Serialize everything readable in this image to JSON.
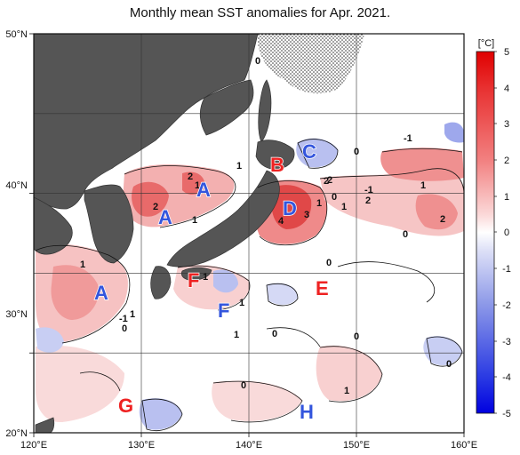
{
  "title": "Monthly mean SST anomalies for Apr. 2021.",
  "longitude_ticks": [
    "120°E",
    "130°E",
    "140°E",
    "150°E",
    "160°E"
  ],
  "latitude_ticks": [
    "50°N",
    "40°N",
    "30°N",
    "20°N"
  ],
  "colorbar": {
    "unit": "[°C]",
    "ticks": [
      "5",
      "4",
      "3",
      "2",
      "1",
      "0",
      "-1",
      "-2",
      "-3",
      "-4",
      "-5"
    ],
    "min": -5,
    "max": 5,
    "colors": {
      "cold": "#0000ee",
      "neutral": "#ffffff",
      "warm": "#ee0000"
    }
  },
  "region_labels": [
    {
      "text": "A",
      "color": "#3355dd"
    },
    {
      "text": "A",
      "color": "#3355dd"
    },
    {
      "text": "A",
      "color": "#3355dd"
    },
    {
      "text": "B",
      "color": "#ee2222"
    },
    {
      "text": "C",
      "color": "#3355dd"
    },
    {
      "text": "D",
      "color": "#3355dd"
    },
    {
      "text": "E",
      "color": "#ee2222"
    },
    {
      "text": "F",
      "color": "#ee2222"
    },
    {
      "text": "F",
      "color": "#3355dd"
    },
    {
      "text": "G",
      "color": "#ee2222"
    },
    {
      "text": "H",
      "color": "#3355dd"
    }
  ],
  "contour_labels": [
    "0",
    "1",
    "1",
    "2",
    "2",
    "1",
    "0",
    "-1",
    "2",
    "-1",
    "2",
    "1",
    "2",
    "1",
    "4",
    "3",
    "1",
    "0",
    "2",
    "1",
    "0",
    "1",
    "1",
    "-1",
    "0",
    "1",
    "0",
    "1",
    "0",
    "0",
    "0",
    "1",
    "0"
  ],
  "colors": {
    "land": "#555555",
    "anomaly_cold": "#3355dd",
    "anomaly_warm": "#ee2222"
  }
}
